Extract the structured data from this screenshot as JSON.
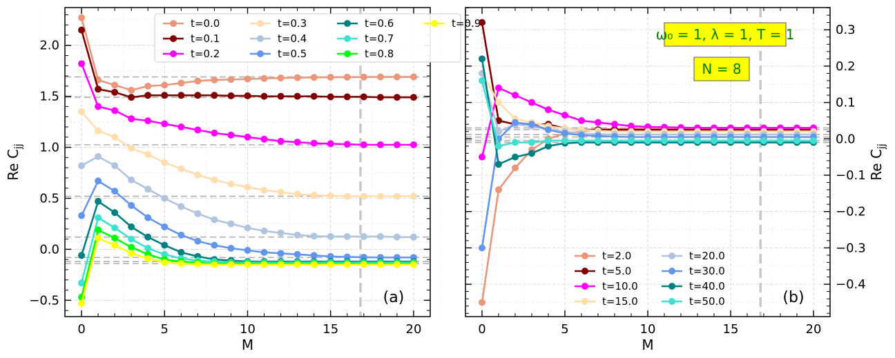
{
  "chart_data": [
    {
      "type": "line",
      "panel_label": "(a)",
      "xlabel": "M",
      "ylabel": "Re C_jj",
      "xlim": [
        -1,
        21
      ],
      "ylim": [
        -0.66,
        2.37
      ],
      "xticks": [
        "0",
        "5",
        "10",
        "15",
        "20"
      ],
      "yticks": [
        "−0.5",
        "0.0",
        "0.5",
        "1.0",
        "1.5",
        "2.0"
      ],
      "ytick_values": [
        -0.5,
        0.0,
        0.5,
        1.0,
        1.5,
        2.0
      ],
      "vline_x": 16.8,
      "hlines": [
        1.69,
        1.49,
        1.025,
        0.52,
        0.12,
        -0.08,
        -0.12,
        -0.14
      ],
      "x": [
        0,
        1,
        2,
        3,
        4,
        5,
        6,
        7,
        8,
        9,
        10,
        11,
        12,
        13,
        14,
        15,
        16,
        17,
        18,
        19,
        20
      ],
      "series": [
        {
          "name": "t=0.0",
          "color": "#e9967a",
          "values": [
            2.27,
            1.66,
            1.61,
            1.56,
            1.6,
            1.61,
            1.63,
            1.65,
            1.66,
            1.665,
            1.67,
            1.675,
            1.68,
            1.683,
            1.685,
            1.687,
            1.688,
            1.689,
            1.69,
            1.69,
            1.69
          ]
        },
        {
          "name": "t=0.1",
          "color": "#800000",
          "values": [
            2.15,
            1.57,
            1.54,
            1.49,
            1.51,
            1.51,
            1.51,
            1.51,
            1.51,
            1.505,
            1.505,
            1.5,
            1.5,
            1.5,
            1.5,
            1.495,
            1.495,
            1.495,
            1.49,
            1.49,
            1.49
          ]
        },
        {
          "name": "t=0.2",
          "color": "#ff00ff",
          "values": [
            1.82,
            1.4,
            1.36,
            1.28,
            1.26,
            1.23,
            1.2,
            1.17,
            1.14,
            1.12,
            1.1,
            1.08,
            1.06,
            1.05,
            1.04,
            1.035,
            1.03,
            1.025,
            1.025,
            1.025,
            1.025
          ]
        },
        {
          "name": "t=0.3",
          "color": "#ffdead",
          "values": [
            1.35,
            1.16,
            1.1,
            0.99,
            0.93,
            0.85,
            0.79,
            0.73,
            0.68,
            0.64,
            0.61,
            0.58,
            0.56,
            0.54,
            0.53,
            0.525,
            0.52,
            0.52,
            0.52,
            0.52,
            0.52
          ]
        },
        {
          "name": "t=0.4",
          "color": "#b0c4de",
          "values": [
            0.82,
            0.91,
            0.82,
            0.68,
            0.59,
            0.5,
            0.42,
            0.35,
            0.29,
            0.25,
            0.21,
            0.18,
            0.16,
            0.14,
            0.13,
            0.125,
            0.125,
            0.125,
            0.125,
            0.12,
            0.12
          ]
        },
        {
          "name": "t=0.5",
          "color": "#6495ed",
          "values": [
            0.33,
            0.67,
            0.57,
            0.43,
            0.31,
            0.22,
            0.14,
            0.08,
            0.04,
            0.01,
            -0.01,
            -0.03,
            -0.04,
            -0.05,
            -0.06,
            -0.07,
            -0.075,
            -0.078,
            -0.08,
            -0.08,
            -0.08
          ]
        },
        {
          "name": "t=0.6",
          "color": "#008080",
          "values": [
            -0.06,
            0.47,
            0.36,
            0.22,
            0.12,
            0.04,
            -0.03,
            -0.07,
            -0.1,
            -0.11,
            -0.12,
            -0.12,
            -0.12,
            -0.12,
            -0.12,
            -0.12,
            -0.12,
            -0.12,
            -0.12,
            -0.12,
            -0.12
          ]
        },
        {
          "name": "t=0.7",
          "color": "#40e0d0",
          "values": [
            -0.33,
            0.31,
            0.21,
            0.1,
            0.01,
            -0.05,
            -0.09,
            -0.11,
            -0.12,
            -0.13,
            -0.13,
            -0.13,
            -0.13,
            -0.13,
            -0.13,
            -0.13,
            -0.13,
            -0.13,
            -0.13,
            -0.13,
            -0.13
          ]
        },
        {
          "name": "t=0.8",
          "color": "#00ff00",
          "values": [
            -0.47,
            0.19,
            0.11,
            0.02,
            -0.05,
            -0.1,
            -0.12,
            -0.13,
            -0.14,
            -0.14,
            -0.14,
            -0.14,
            -0.14,
            -0.14,
            -0.14,
            -0.14,
            -0.14,
            -0.14,
            -0.14,
            -0.14,
            -0.14
          ]
        },
        {
          "name": "t=0.9",
          "color": "#ffff00",
          "values": [
            -0.53,
            0.11,
            0.04,
            -0.04,
            -0.09,
            -0.13,
            -0.14,
            -0.145,
            -0.15,
            -0.15,
            -0.15,
            -0.15,
            -0.15,
            -0.15,
            -0.15,
            -0.15,
            -0.15,
            -0.15,
            -0.15,
            -0.15,
            -0.15
          ]
        }
      ]
    },
    {
      "type": "line",
      "panel_label": "(b)",
      "xlabel": "M",
      "ylabel": "Re C_jj",
      "ylabel_position": "right",
      "xlim": [
        -1,
        21
      ],
      "ylim": [
        -0.489,
        0.361
      ],
      "xticks": [
        "0",
        "5",
        "10",
        "15",
        "20"
      ],
      "yticks": [
        "−0.4",
        "−0.3",
        "−0.2",
        "−0.1",
        "0.0",
        "0.1",
        "0.2",
        "0.3"
      ],
      "ytick_values": [
        -0.4,
        -0.3,
        -0.2,
        -0.1,
        0.0,
        0.1,
        0.2,
        0.3
      ],
      "vline_x": 16.8,
      "hlines": [
        0.03,
        0.025,
        0.012,
        0.005,
        -0.005,
        -0.01
      ],
      "annotations": [
        "ω₀ = 1, λ = 1, T = 1",
        "N = 8"
      ],
      "x": [
        0,
        1,
        2,
        3,
        4,
        5,
        6,
        7,
        8,
        9,
        10,
        11,
        12,
        13,
        14,
        15,
        16,
        17,
        18,
        19,
        20
      ],
      "series": [
        {
          "name": "t=2.0",
          "color": "#e9967a",
          "values": [
            -0.45,
            -0.14,
            -0.08,
            -0.03,
            0.0,
            0.015,
            0.02,
            0.025,
            0.027,
            0.028,
            0.029,
            0.03,
            0.03,
            0.03,
            0.03,
            0.03,
            0.03,
            0.03,
            0.03,
            0.03,
            0.03
          ]
        },
        {
          "name": "t=5.0",
          "color": "#800000",
          "values": [
            0.32,
            0.05,
            0.04,
            0.04,
            0.04,
            0.028,
            0.025,
            0.025,
            0.025,
            0.025,
            0.025,
            0.025,
            0.025,
            0.025,
            0.025,
            0.025,
            0.025,
            0.025,
            0.025,
            0.025,
            0.025
          ]
        },
        {
          "name": "t=10.0",
          "color": "#ff00ff",
          "values": [
            -0.05,
            0.14,
            0.12,
            0.1,
            0.08,
            0.065,
            0.05,
            0.045,
            0.04,
            0.035,
            0.033,
            0.032,
            0.031,
            0.03,
            0.03,
            0.03,
            0.03,
            0.03,
            0.03,
            0.03,
            0.03
          ]
        },
        {
          "name": "t=15.0",
          "color": "#ffdead",
          "values": [
            0.18,
            0.1,
            0.055,
            0.045,
            0.035,
            0.028,
            0.025,
            0.022,
            0.02,
            0.02,
            0.02,
            0.02,
            0.02,
            0.02,
            0.02,
            0.02,
            0.02,
            0.02,
            0.02,
            0.02,
            0.02
          ]
        },
        {
          "name": "t=20.0",
          "color": "#b0c4de",
          "values": [
            0.18,
            0.02,
            0.04,
            0.035,
            0.025,
            0.02,
            0.015,
            0.013,
            0.012,
            0.012,
            0.012,
            0.012,
            0.012,
            0.012,
            0.012,
            0.012,
            0.012,
            0.012,
            0.012,
            0.012,
            0.012
          ]
        },
        {
          "name": "t=30.0",
          "color": "#6495ed",
          "values": [
            -0.3,
            0.0,
            0.045,
            0.04,
            0.025,
            0.015,
            0.01,
            0.008,
            0.006,
            0.005,
            0.005,
            0.005,
            0.005,
            0.005,
            0.005,
            0.005,
            0.005,
            0.005,
            0.005,
            0.005,
            0.005
          ]
        },
        {
          "name": "t=40.0",
          "color": "#008080",
          "values": [
            0.22,
            -0.07,
            -0.05,
            -0.04,
            -0.02,
            -0.012,
            -0.01,
            -0.01,
            -0.01,
            -0.01,
            -0.01,
            -0.01,
            -0.01,
            -0.01,
            -0.01,
            -0.01,
            -0.01,
            -0.01,
            -0.01,
            -0.01,
            -0.01
          ]
        },
        {
          "name": "t=50.0",
          "color": "#40e0d0",
          "values": [
            0.16,
            -0.02,
            -0.01,
            -0.01,
            -0.005,
            -0.005,
            -0.005,
            -0.005,
            -0.005,
            -0.005,
            -0.005,
            -0.005,
            -0.005,
            -0.005,
            -0.005,
            -0.005,
            -0.005,
            -0.005,
            -0.005,
            -0.005,
            -0.005
          ]
        }
      ]
    }
  ]
}
